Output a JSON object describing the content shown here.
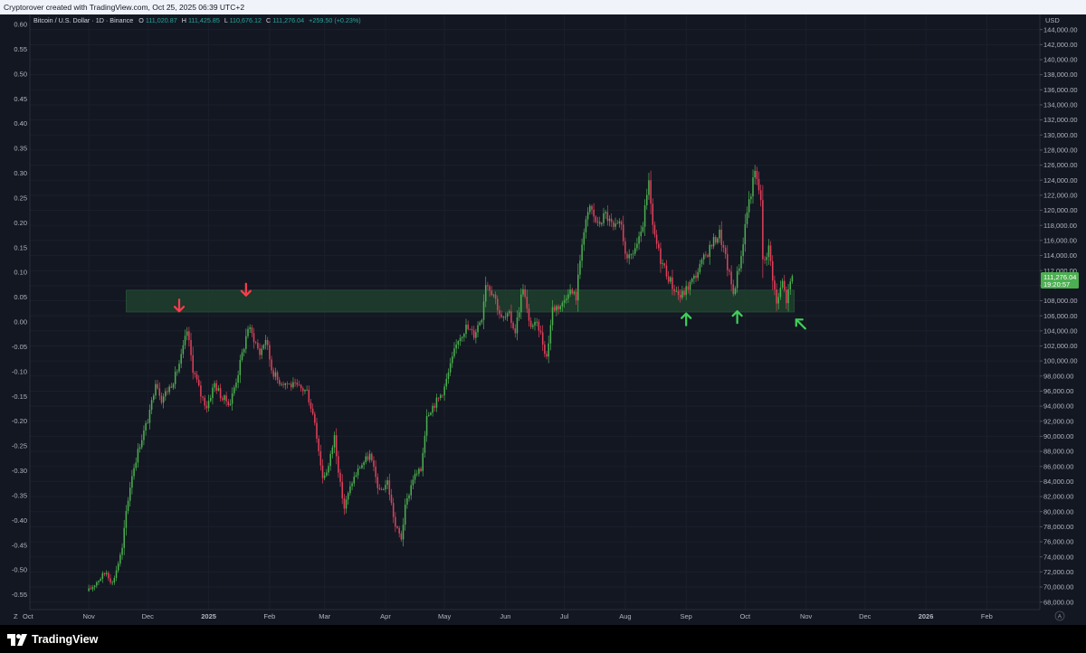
{
  "header": {
    "text": "Cryptorover created with TradingView.com, Oct 25, 2025 06:39 UTC+2"
  },
  "footer": {
    "brand": "TradingView"
  },
  "legend": {
    "symbol": "Bitcoin / U.S. Dollar · 1D · Binance",
    "o_label": "O",
    "o_value": "111,020.87",
    "h_label": "H",
    "h_value": "111,425.85",
    "l_label": "L",
    "l_value": "110,676.12",
    "c_label": "C",
    "c_value": "111,276.04",
    "change": "+259.50 (+0.23%)"
  },
  "price_axis": {
    "unit": "USD"
  },
  "last_price": {
    "value": "111,276.04",
    "countdown": "19:20:57"
  },
  "corner_labels": {
    "left": "Z",
    "right": "A"
  },
  "colors": {
    "up": "#26a69a",
    "down": "#ef5350",
    "candle_up": "#4caf50",
    "candle_down": "#e0405a",
    "zone": "#1e3d2c",
    "arrow_red": "#ff3b4e",
    "arrow_green": "#3fd05a",
    "price_badge": "#4caf50"
  },
  "chart_data": {
    "type": "candlestick",
    "right_axis": {
      "label": "USD",
      "range": [
        67000,
        146000
      ],
      "ticks": [
        68000,
        70000,
        72000,
        74000,
        76000,
        78000,
        80000,
        82000,
        84000,
        86000,
        88000,
        90000,
        92000,
        94000,
        96000,
        98000,
        100000,
        102000,
        104000,
        106000,
        108000,
        110000,
        112000,
        114000,
        116000,
        118000,
        120000,
        122000,
        124000,
        126000,
        128000,
        130000,
        132000,
        134000,
        136000,
        138000,
        140000,
        142000,
        144000
      ],
      "tick_labels": [
        "68,000.00",
        "70,000.00",
        "72,000.00",
        "74,000.00",
        "76,000.00",
        "78,000.00",
        "80,000.00",
        "82,000.00",
        "84,000.00",
        "86,000.00",
        "88,000.00",
        "90,000.00",
        "92,000.00",
        "94,000.00",
        "96,000.00",
        "98,000.00",
        "100,000.00",
        "102,000.00",
        "104,000.00",
        "106,000.00",
        "108,000.00",
        "110,000.00",
        "112,000.00",
        "114,000.00",
        "116,000.00",
        "118,000.00",
        "120,000.00",
        "122,000.00",
        "124,000.00",
        "126,000.00",
        "128,000.00",
        "130,000.00",
        "132,000.00",
        "134,000.00",
        "136,000.00",
        "138,000.00",
        "140,000.00",
        "142,000.00",
        "144,000.00"
      ]
    },
    "left_axis": {
      "range": [
        -0.58,
        0.62
      ],
      "ticks": [
        0.6,
        0.55,
        0.5,
        0.45,
        0.4,
        0.35,
        0.3,
        0.25,
        0.2,
        0.15,
        0.1,
        0.05,
        0.0,
        -0.05,
        -0.1,
        -0.15,
        -0.2,
        -0.25,
        -0.3,
        -0.35,
        -0.4,
        -0.45,
        -0.5,
        -0.55
      ],
      "tick_labels": [
        "0.60",
        "0.55",
        "0.50",
        "0.45",
        "0.40",
        "0.35",
        "0.30",
        "0.25",
        "0.20",
        "0.15",
        "0.10",
        "0.05",
        "0.00",
        "-0.05",
        "-0.10",
        "-0.15",
        "-0.20",
        "-0.25",
        "-0.30",
        "-0.35",
        "-0.40",
        "-0.45",
        "-0.50",
        "-0.55"
      ]
    },
    "x_axis": {
      "range": [
        "2024-10-02",
        "2026-02-28"
      ],
      "ticks": [
        {
          "date": "2024-10-01",
          "label": "Oct"
        },
        {
          "date": "2024-11-01",
          "label": "Nov"
        },
        {
          "date": "2024-12-01",
          "label": "Dec"
        },
        {
          "date": "2025-01-01",
          "label": "2025"
        },
        {
          "date": "2025-02-01",
          "label": "Feb"
        },
        {
          "date": "2025-03-01",
          "label": "Mar"
        },
        {
          "date": "2025-04-01",
          "label": "Apr"
        },
        {
          "date": "2025-05-01",
          "label": "May"
        },
        {
          "date": "2025-06-01",
          "label": "Jun"
        },
        {
          "date": "2025-07-01",
          "label": "Jul"
        },
        {
          "date": "2025-08-01",
          "label": "Aug"
        },
        {
          "date": "2025-09-01",
          "label": "Sep"
        },
        {
          "date": "2025-10-01",
          "label": "Oct"
        },
        {
          "date": "2025-11-01",
          "label": "Nov"
        },
        {
          "date": "2025-12-01",
          "label": "Dec"
        },
        {
          "date": "2026-01-01",
          "label": "2026"
        },
        {
          "date": "2026-02-01",
          "label": "Feb"
        }
      ]
    },
    "close_path": [
      [
        "2024-11-01",
        69500
      ],
      [
        "2024-11-06",
        71000
      ],
      [
        "2024-11-10",
        72000
      ],
      [
        "2024-11-13",
        70500
      ],
      [
        "2024-11-18",
        75000
      ],
      [
        "2024-11-20",
        80000
      ],
      [
        "2024-11-23",
        85000
      ],
      [
        "2024-11-27",
        89000
      ],
      [
        "2024-12-02",
        93000
      ],
      [
        "2024-12-05",
        97500
      ],
      [
        "2024-12-08",
        95000
      ],
      [
        "2024-12-12",
        96500
      ],
      [
        "2024-12-15",
        98000
      ],
      [
        "2024-12-18",
        100500
      ],
      [
        "2024-12-21",
        104000
      ],
      [
        "2024-12-24",
        99000
      ],
      [
        "2024-12-28",
        95500
      ],
      [
        "2024-12-31",
        94000
      ],
      [
        "2025-01-04",
        97000
      ],
      [
        "2025-01-08",
        95000
      ],
      [
        "2025-01-12",
        94500
      ],
      [
        "2025-01-16",
        98500
      ],
      [
        "2025-01-19",
        102000
      ],
      [
        "2025-01-21",
        104500
      ],
      [
        "2025-01-24",
        103000
      ],
      [
        "2025-01-27",
        101000
      ],
      [
        "2025-01-30",
        103000
      ],
      [
        "2025-02-02",
        99000
      ],
      [
        "2025-02-05",
        97500
      ],
      [
        "2025-02-10",
        97000
      ],
      [
        "2025-02-15",
        96500
      ],
      [
        "2025-02-20",
        96000
      ],
      [
        "2025-02-24",
        92000
      ],
      [
        "2025-02-28",
        84500
      ],
      [
        "2025-03-03",
        86000
      ],
      [
        "2025-03-06",
        90000
      ],
      [
        "2025-03-09",
        83500
      ],
      [
        "2025-03-11",
        80500
      ],
      [
        "2025-03-15",
        84000
      ],
      [
        "2025-03-19",
        86000
      ],
      [
        "2025-03-24",
        87500
      ],
      [
        "2025-03-29",
        82500
      ],
      [
        "2025-04-02",
        84000
      ],
      [
        "2025-04-06",
        78000
      ],
      [
        "2025-04-09",
        76500
      ],
      [
        "2025-04-11",
        80500
      ],
      [
        "2025-04-15",
        84500
      ],
      [
        "2025-04-19",
        85500
      ],
      [
        "2025-04-22",
        93000
      ],
      [
        "2025-04-28",
        95000
      ],
      [
        "2025-05-01",
        96500
      ],
      [
        "2025-05-08",
        103000
      ],
      [
        "2025-05-12",
        104500
      ],
      [
        "2025-05-16",
        103500
      ],
      [
        "2025-05-20",
        106000
      ],
      [
        "2025-05-22",
        110500
      ],
      [
        "2025-05-26",
        109000
      ],
      [
        "2025-05-30",
        105500
      ],
      [
        "2025-06-03",
        106000
      ],
      [
        "2025-06-06",
        104000
      ],
      [
        "2025-06-10",
        110000
      ],
      [
        "2025-06-13",
        105000
      ],
      [
        "2025-06-18",
        104500
      ],
      [
        "2025-06-22",
        100500
      ],
      [
        "2025-06-25",
        107000
      ],
      [
        "2025-06-30",
        107500
      ],
      [
        "2025-07-03",
        109500
      ],
      [
        "2025-07-07",
        108500
      ],
      [
        "2025-07-10",
        116000
      ],
      [
        "2025-07-14",
        120500
      ],
      [
        "2025-07-18",
        118000
      ],
      [
        "2025-07-22",
        119500
      ],
      [
        "2025-07-26",
        117500
      ],
      [
        "2025-07-30",
        118000
      ],
      [
        "2025-08-02",
        113000
      ],
      [
        "2025-08-05",
        114500
      ],
      [
        "2025-08-09",
        116500
      ],
      [
        "2025-08-13",
        123500
      ],
      [
        "2025-08-15",
        117500
      ],
      [
        "2025-08-19",
        113500
      ],
      [
        "2025-08-25",
        110000
      ],
      [
        "2025-08-29",
        108500
      ],
      [
        "2025-09-01",
        109500
      ],
      [
        "2025-09-05",
        111000
      ],
      [
        "2025-09-10",
        113500
      ],
      [
        "2025-09-14",
        115500
      ],
      [
        "2025-09-18",
        117000
      ],
      [
        "2025-09-22",
        112500
      ],
      [
        "2025-09-25",
        109000
      ],
      [
        "2025-09-29",
        114000
      ],
      [
        "2025-10-02",
        120000
      ],
      [
        "2025-10-06",
        125000
      ],
      [
        "2025-10-09",
        121500
      ],
      [
        "2025-10-10",
        113000
      ],
      [
        "2025-10-13",
        115000
      ],
      [
        "2025-10-17",
        107500
      ],
      [
        "2025-10-20",
        110500
      ],
      [
        "2025-10-22",
        108000
      ],
      [
        "2025-10-25",
        111276
      ]
    ],
    "annotations": [
      {
        "type": "zone",
        "from": "2024-11-20",
        "to": "2025-10-26",
        "low": 106500,
        "high": 109400
      },
      {
        "type": "arrow",
        "direction": "down",
        "date": "2024-12-17",
        "price": 106600,
        "color": "red"
      },
      {
        "type": "arrow",
        "direction": "down",
        "date": "2025-01-20",
        "price": 108700,
        "color": "red"
      },
      {
        "type": "arrow",
        "direction": "up",
        "date": "2025-09-01",
        "price": 106300,
        "color": "green"
      },
      {
        "type": "arrow",
        "direction": "up",
        "date": "2025-09-27",
        "price": 106600,
        "color": "green"
      },
      {
        "type": "arrow",
        "direction": "up-left",
        "date": "2025-10-27",
        "price": 105500,
        "color": "green"
      }
    ]
  }
}
